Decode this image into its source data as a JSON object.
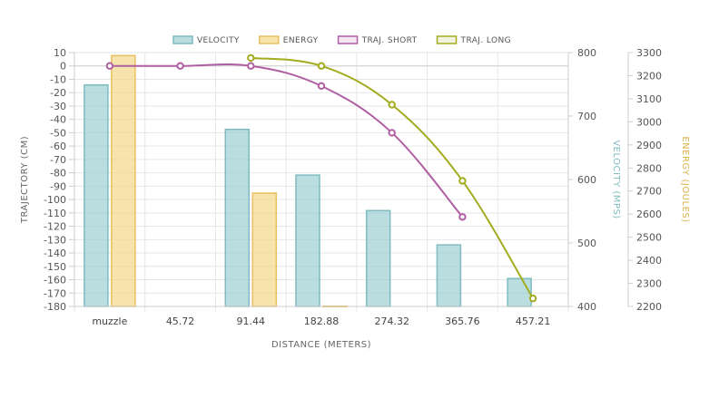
{
  "chart_data": {
    "type": "bar",
    "categories": [
      "muzzle",
      "45.72",
      "91.44",
      "182.88",
      "274.32",
      "365.76",
      "457.21"
    ],
    "xlabel": "DISTANCE (METERS)",
    "legend_position": "top-center",
    "grid": true,
    "axes": {
      "trajectory": {
        "label": "TRAJECTORY (CM)",
        "position": "left",
        "range": [
          -180,
          10
        ],
        "ticks": [
          10,
          0,
          -10,
          -20,
          -30,
          -40,
          -50,
          -60,
          -70,
          -80,
          -90,
          -100,
          -110,
          -120,
          -130,
          -140,
          -150,
          -160,
          -170,
          -180
        ]
      },
      "velocity": {
        "label": "VELOCITY (MPS)",
        "position": "right",
        "range": [
          400,
          800
        ],
        "ticks": [
          800,
          700,
          600,
          500,
          400
        ]
      },
      "energy": {
        "label": "ENERGY (JOULES)",
        "position": "right",
        "range": [
          2200,
          3300
        ],
        "ticks": [
          3300,
          3200,
          3100,
          3000,
          2900,
          2800,
          2700,
          2600,
          2500,
          2400,
          2300,
          2200
        ]
      }
    },
    "series": [
      {
        "name": "VELOCITY",
        "kind": "bar",
        "axis": "velocity",
        "color": "#9ccfd3",
        "border": "#7fbcc1",
        "values": [
          749,
          null,
          679,
          607,
          551,
          497,
          444
        ]
      },
      {
        "name": "ENERGY",
        "kind": "bar",
        "axis": "energy",
        "color": "#f4d88a",
        "border": "#e9c060",
        "values": [
          3287,
          null,
          2691,
          2201,
          null,
          null,
          null
        ]
      },
      {
        "name": "TRAJ. SHORT",
        "kind": "line",
        "axis": "trajectory",
        "color": "#b05fa3",
        "values": [
          0,
          0,
          0,
          -15,
          -50,
          -113,
          null
        ]
      },
      {
        "name": "TRAJ. LONG",
        "kind": "line",
        "axis": "trajectory",
        "color": "#a3ac1f",
        "values": [
          null,
          null,
          6,
          0,
          -29,
          -86,
          -174
        ]
      }
    ]
  }
}
